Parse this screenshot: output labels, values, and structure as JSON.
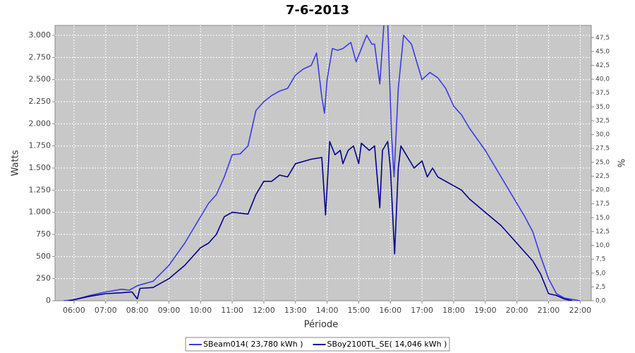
{
  "chart_data": {
    "type": "line",
    "title": "7-6-2013",
    "x_label": "Période",
    "y_label": "Watts",
    "y2_label": "%",
    "xlim": [
      "05:24",
      "22:21"
    ],
    "xticks": [
      "06:00",
      "07:00",
      "08:00",
      "09:00",
      "10:00",
      "11:00",
      "12:00",
      "13:00",
      "14:00",
      "15:00",
      "16:00",
      "17:00",
      "18:00",
      "19:00",
      "20:00",
      "21:00",
      "22:00"
    ],
    "ylim": [
      0,
      3112
    ],
    "yticks": [
      0,
      250,
      500,
      750,
      {
        "value": 1000,
        "label": "1.000"
      },
      {
        "value": 1250,
        "label": "1.250"
      },
      {
        "value": 1500,
        "label": "1.500"
      },
      {
        "value": 1750,
        "label": "1.750"
      },
      {
        "value": 2000,
        "label": "2.000"
      },
      {
        "value": 2250,
        "label": "2.250"
      },
      {
        "value": 2500,
        "label": "2.500"
      },
      {
        "value": 2750,
        "label": "2.750"
      },
      {
        "value": 3000,
        "label": "3.000"
      }
    ],
    "y2lim": [
      0,
      49.7
    ],
    "y2ticks": [
      {
        "value": 0,
        "label": "0,0"
      },
      {
        "value": 2.5,
        "label": "2,5"
      },
      {
        "value": 5,
        "label": "5,0"
      },
      {
        "value": 7.5,
        "label": "7,5"
      },
      {
        "value": 10,
        "label": "10,0"
      },
      {
        "value": 12.5,
        "label": "12,5"
      },
      {
        "value": 15,
        "label": "15,0"
      },
      {
        "value": 17.5,
        "label": "17,5"
      },
      {
        "value": 20,
        "label": "20,0"
      },
      {
        "value": 22.5,
        "label": "22,5"
      },
      {
        "value": 25,
        "label": "25,0"
      },
      {
        "value": 27.5,
        "label": "27,5"
      },
      {
        "value": 30,
        "label": "30,0"
      },
      {
        "value": 32.5,
        "label": "32,5"
      },
      {
        "value": 35,
        "label": "35,0"
      },
      {
        "value": 37.5,
        "label": "37,5"
      },
      {
        "value": 40,
        "label": "40,0"
      },
      {
        "value": 42.5,
        "label": "42,5"
      },
      {
        "value": 45,
        "label": "45,0"
      },
      {
        "value": 47.5,
        "label": "47,5"
      }
    ],
    "grid": true,
    "legend": "bottom",
    "series": [
      {
        "name": "SBeam014( 23,780 kWh )",
        "color": "#3a3ae8",
        "x": [
          "05:40",
          "06:00",
          "06:30",
          "07:00",
          "07:30",
          "07:45",
          "08:00",
          "08:30",
          "09:00",
          "09:30",
          "10:00",
          "10:15",
          "10:30",
          "10:45",
          "11:00",
          "11:15",
          "11:30",
          "11:45",
          "12:00",
          "12:15",
          "12:30",
          "12:45",
          "13:00",
          "13:15",
          "13:30",
          "13:40",
          "13:50",
          "13:55",
          "14:00",
          "14:10",
          "14:20",
          "14:30",
          "14:45",
          "14:55",
          "15:05",
          "15:15",
          "15:25",
          "15:30",
          "15:40",
          "15:48",
          "15:55",
          "16:02",
          "16:07",
          "16:15",
          "16:25",
          "16:40",
          "16:50",
          "17:00",
          "17:15",
          "17:30",
          "17:45",
          "18:00",
          "18:15",
          "18:30",
          "19:00",
          "19:30",
          "20:00",
          "20:15",
          "20:30",
          "20:45",
          "21:00",
          "21:15",
          "21:30",
          "22:00"
        ],
        "values": [
          0,
          10,
          60,
          100,
          130,
          120,
          170,
          220,
          400,
          650,
          950,
          1100,
          1200,
          1400,
          1650,
          1660,
          1750,
          2150,
          2250,
          2320,
          2370,
          2400,
          2550,
          2620,
          2660,
          2800,
          2300,
          2120,
          2500,
          2850,
          2830,
          2850,
          2920,
          2700,
          2850,
          3000,
          2900,
          2900,
          2450,
          3150,
          3150,
          1900,
          1400,
          2400,
          3000,
          2900,
          2700,
          2500,
          2580,
          2520,
          2400,
          2200,
          2100,
          1950,
          1700,
          1400,
          1100,
          950,
          780,
          500,
          250,
          80,
          30,
          0
        ]
      },
      {
        "name": "SBoy2100TL_SE( 14,046 kWh )",
        "color": "#00008f",
        "x": [
          "05:50",
          "06:30",
          "07:00",
          "07:30",
          "07:50",
          "08:00",
          "08:05",
          "08:30",
          "09:00",
          "09:30",
          "10:00",
          "10:15",
          "10:30",
          "10:45",
          "11:00",
          "11:30",
          "11:45",
          "12:00",
          "12:15",
          "12:30",
          "12:45",
          "13:00",
          "13:30",
          "13:50",
          "13:57",
          "14:05",
          "14:15",
          "14:25",
          "14:30",
          "14:40",
          "14:50",
          "15:00",
          "15:05",
          "15:20",
          "15:30",
          "15:40",
          "15:45",
          "15:55",
          "16:00",
          "16:08",
          "16:15",
          "16:20",
          "16:30",
          "16:45",
          "17:00",
          "17:10",
          "17:20",
          "17:30",
          "18:00",
          "18:15",
          "18:30",
          "19:00",
          "19:30",
          "20:00",
          "20:15",
          "20:30",
          "20:45",
          "21:00",
          "21:15",
          "21:30",
          "21:45"
        ],
        "values": [
          0,
          50,
          80,
          90,
          100,
          20,
          140,
          150,
          250,
          400,
          600,
          650,
          750,
          950,
          1000,
          980,
          1200,
          1350,
          1350,
          1420,
          1400,
          1550,
          1600,
          1620,
          970,
          1800,
          1650,
          1700,
          1550,
          1700,
          1750,
          1550,
          1780,
          1700,
          1750,
          1050,
          1700,
          1800,
          1500,
          530,
          1500,
          1750,
          1650,
          1500,
          1580,
          1400,
          1500,
          1400,
          1300,
          1250,
          1150,
          1000,
          850,
          650,
          550,
          450,
          300,
          80,
          60,
          20,
          0
        ]
      }
    ]
  }
}
